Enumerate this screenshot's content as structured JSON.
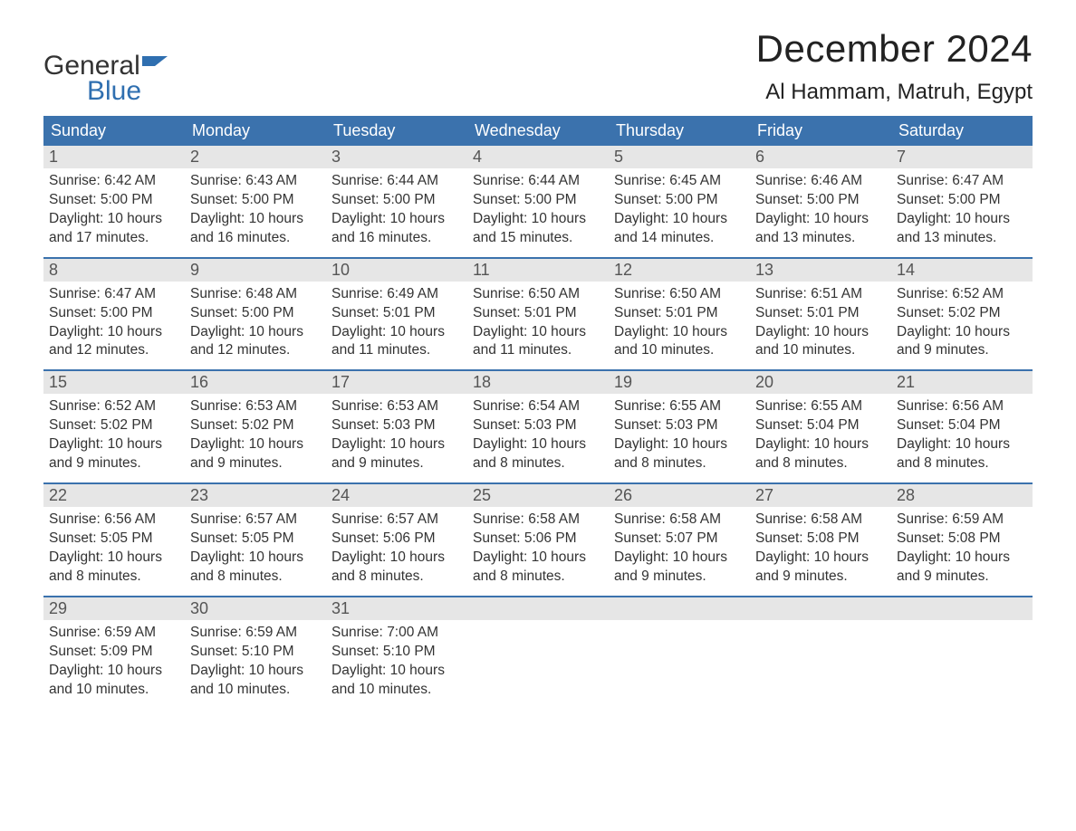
{
  "logo": {
    "word1": "General",
    "word2": "Blue",
    "text_color_1": "#333333",
    "text_color_2": "#2f6fb0",
    "flag_color": "#2f6fb0"
  },
  "title": "December 2024",
  "location": "Al Hammam, Matruh, Egypt",
  "colors": {
    "header_bg": "#3b72ad",
    "header_text": "#ffffff",
    "daynum_bg": "#e6e6e6",
    "daynum_text": "#555555",
    "body_text": "#333333",
    "week_border": "#3b72ad",
    "page_bg": "#ffffff"
  },
  "typography": {
    "title_fontsize": 42,
    "location_fontsize": 24,
    "header_fontsize": 18,
    "daynum_fontsize": 18,
    "body_fontsize": 15.5,
    "font_family": "Arial"
  },
  "layout": {
    "columns": 7,
    "rows": 5,
    "cell_min_height": 118
  },
  "day_headers": [
    "Sunday",
    "Monday",
    "Tuesday",
    "Wednesday",
    "Thursday",
    "Friday",
    "Saturday"
  ],
  "labels": {
    "sunrise": "Sunrise:",
    "sunset": "Sunset:",
    "daylight": "Daylight:"
  },
  "days": [
    {
      "n": 1,
      "sunrise": "6:42 AM",
      "sunset": "5:00 PM",
      "daylight": "10 hours and 17 minutes."
    },
    {
      "n": 2,
      "sunrise": "6:43 AM",
      "sunset": "5:00 PM",
      "daylight": "10 hours and 16 minutes."
    },
    {
      "n": 3,
      "sunrise": "6:44 AM",
      "sunset": "5:00 PM",
      "daylight": "10 hours and 16 minutes."
    },
    {
      "n": 4,
      "sunrise": "6:44 AM",
      "sunset": "5:00 PM",
      "daylight": "10 hours and 15 minutes."
    },
    {
      "n": 5,
      "sunrise": "6:45 AM",
      "sunset": "5:00 PM",
      "daylight": "10 hours and 14 minutes."
    },
    {
      "n": 6,
      "sunrise": "6:46 AM",
      "sunset": "5:00 PM",
      "daylight": "10 hours and 13 minutes."
    },
    {
      "n": 7,
      "sunrise": "6:47 AM",
      "sunset": "5:00 PM",
      "daylight": "10 hours and 13 minutes."
    },
    {
      "n": 8,
      "sunrise": "6:47 AM",
      "sunset": "5:00 PM",
      "daylight": "10 hours and 12 minutes."
    },
    {
      "n": 9,
      "sunrise": "6:48 AM",
      "sunset": "5:00 PM",
      "daylight": "10 hours and 12 minutes."
    },
    {
      "n": 10,
      "sunrise": "6:49 AM",
      "sunset": "5:01 PM",
      "daylight": "10 hours and 11 minutes."
    },
    {
      "n": 11,
      "sunrise": "6:50 AM",
      "sunset": "5:01 PM",
      "daylight": "10 hours and 11 minutes."
    },
    {
      "n": 12,
      "sunrise": "6:50 AM",
      "sunset": "5:01 PM",
      "daylight": "10 hours and 10 minutes."
    },
    {
      "n": 13,
      "sunrise": "6:51 AM",
      "sunset": "5:01 PM",
      "daylight": "10 hours and 10 minutes."
    },
    {
      "n": 14,
      "sunrise": "6:52 AM",
      "sunset": "5:02 PM",
      "daylight": "10 hours and 9 minutes."
    },
    {
      "n": 15,
      "sunrise": "6:52 AM",
      "sunset": "5:02 PM",
      "daylight": "10 hours and 9 minutes."
    },
    {
      "n": 16,
      "sunrise": "6:53 AM",
      "sunset": "5:02 PM",
      "daylight": "10 hours and 9 minutes."
    },
    {
      "n": 17,
      "sunrise": "6:53 AM",
      "sunset": "5:03 PM",
      "daylight": "10 hours and 9 minutes."
    },
    {
      "n": 18,
      "sunrise": "6:54 AM",
      "sunset": "5:03 PM",
      "daylight": "10 hours and 8 minutes."
    },
    {
      "n": 19,
      "sunrise": "6:55 AM",
      "sunset": "5:03 PM",
      "daylight": "10 hours and 8 minutes."
    },
    {
      "n": 20,
      "sunrise": "6:55 AM",
      "sunset": "5:04 PM",
      "daylight": "10 hours and 8 minutes."
    },
    {
      "n": 21,
      "sunrise": "6:56 AM",
      "sunset": "5:04 PM",
      "daylight": "10 hours and 8 minutes."
    },
    {
      "n": 22,
      "sunrise": "6:56 AM",
      "sunset": "5:05 PM",
      "daylight": "10 hours and 8 minutes."
    },
    {
      "n": 23,
      "sunrise": "6:57 AM",
      "sunset": "5:05 PM",
      "daylight": "10 hours and 8 minutes."
    },
    {
      "n": 24,
      "sunrise": "6:57 AM",
      "sunset": "5:06 PM",
      "daylight": "10 hours and 8 minutes."
    },
    {
      "n": 25,
      "sunrise": "6:58 AM",
      "sunset": "5:06 PM",
      "daylight": "10 hours and 8 minutes."
    },
    {
      "n": 26,
      "sunrise": "6:58 AM",
      "sunset": "5:07 PM",
      "daylight": "10 hours and 9 minutes."
    },
    {
      "n": 27,
      "sunrise": "6:58 AM",
      "sunset": "5:08 PM",
      "daylight": "10 hours and 9 minutes."
    },
    {
      "n": 28,
      "sunrise": "6:59 AM",
      "sunset": "5:08 PM",
      "daylight": "10 hours and 9 minutes."
    },
    {
      "n": 29,
      "sunrise": "6:59 AM",
      "sunset": "5:09 PM",
      "daylight": "10 hours and 10 minutes."
    },
    {
      "n": 30,
      "sunrise": "6:59 AM",
      "sunset": "5:10 PM",
      "daylight": "10 hours and 10 minutes."
    },
    {
      "n": 31,
      "sunrise": "7:00 AM",
      "sunset": "5:10 PM",
      "daylight": "10 hours and 10 minutes."
    }
  ],
  "trailing_empty_cells": 4
}
